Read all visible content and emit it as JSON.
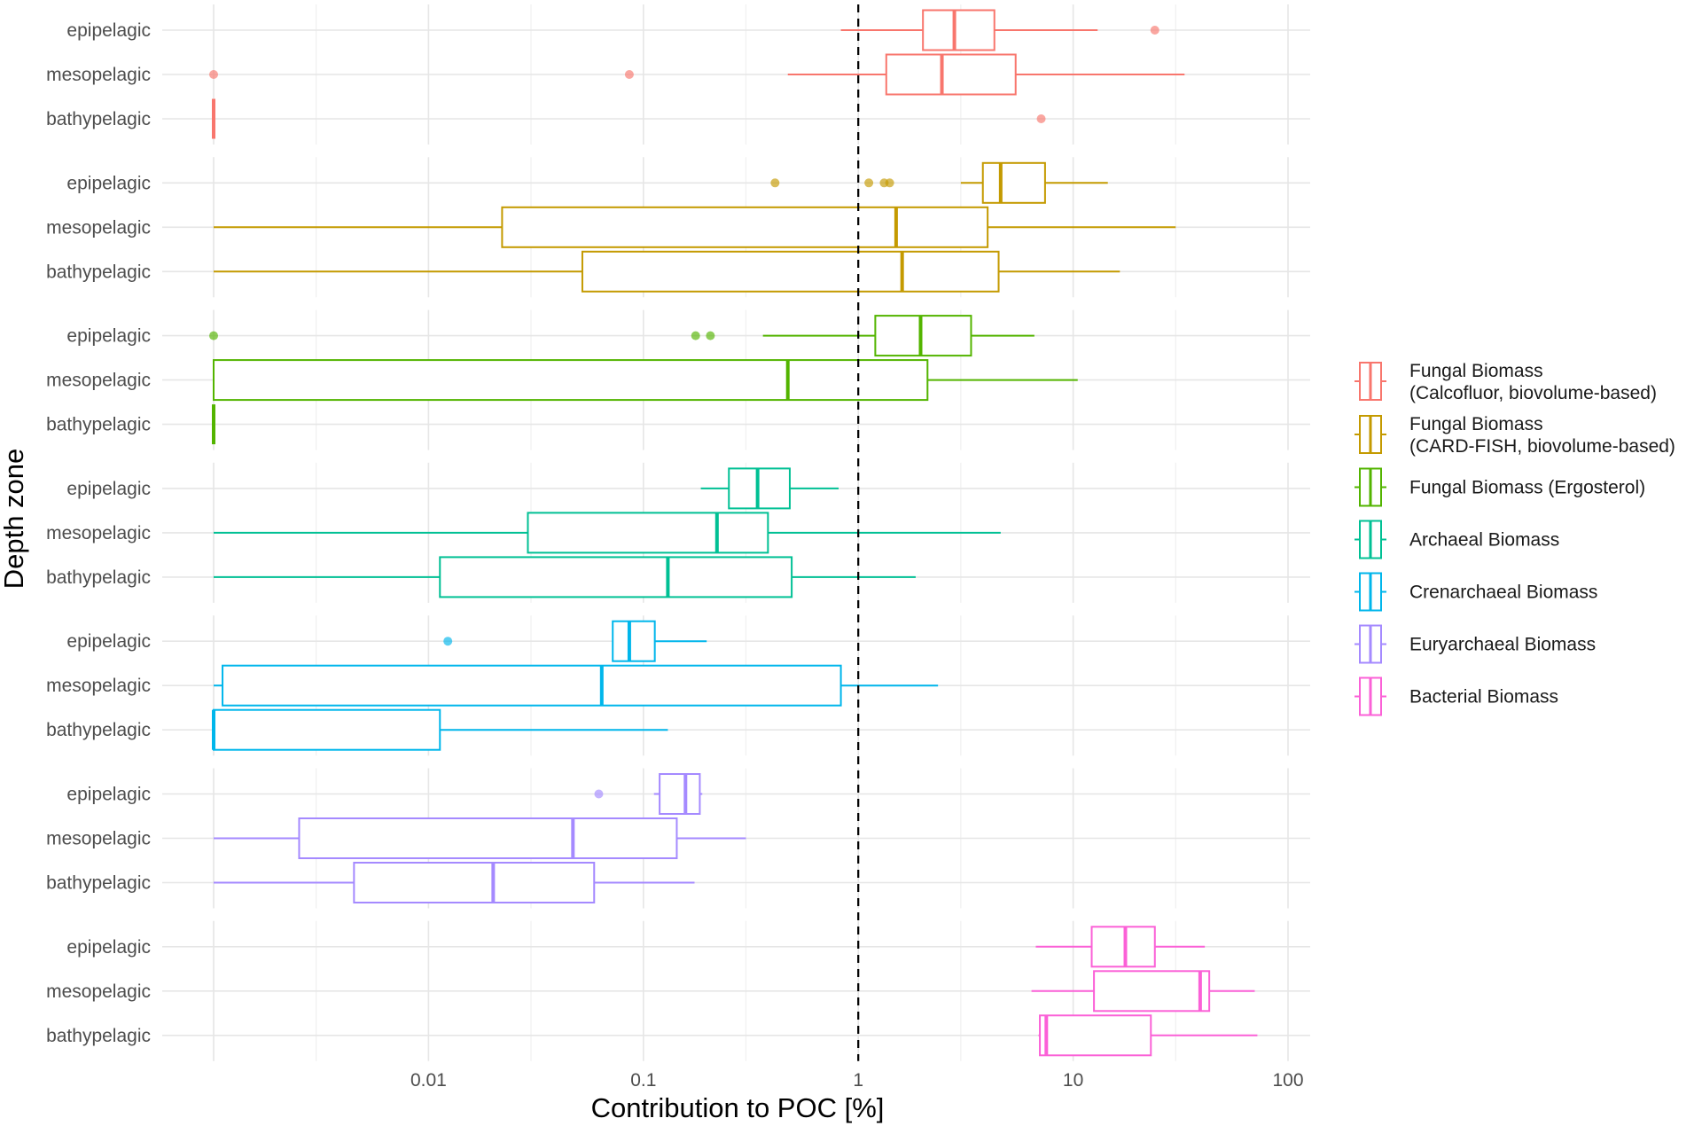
{
  "chart_data": {
    "type": "boxplot",
    "orientation": "horizontal",
    "x_scale": "log10",
    "xlabel": "Contribution to POC [%]",
    "ylabel": "Depth zone",
    "xlim": [
      0.00045,
      160
    ],
    "x_ticks": [
      {
        "value": 0.01,
        "label": "0.01"
      },
      {
        "value": 0.1,
        "label": "0.1"
      },
      {
        "value": 1,
        "label": "1"
      },
      {
        "value": 10,
        "label": "10"
      },
      {
        "value": 100,
        "label": "100"
      }
    ],
    "x_minor_ticks": [
      0.001,
      0.003,
      0.03,
      0.3,
      3,
      30
    ],
    "reference_line": {
      "x": 1,
      "style": "dashed",
      "color": "#000000"
    },
    "depth_zones": [
      "epipelagic",
      "mesopelagic",
      "bathypelagic"
    ],
    "groups": [
      {
        "name": "Fungal Biomass (Calcofluor, biovolume-based)",
        "legend_lines": [
          "Fungal Biomass",
          "(Calcofluor, biovolume-based)"
        ],
        "color": "#F8766D",
        "boxes": [
          {
            "zone": "epipelagic",
            "whisker_low": 0.83,
            "q1": 2.0,
            "median": 2.8,
            "q3": 4.3,
            "whisker_high": 13,
            "outliers": [
              24
            ]
          },
          {
            "zone": "mesopelagic",
            "whisker_low": 0.47,
            "q1": 1.35,
            "median": 2.45,
            "q3": 5.4,
            "whisker_high": 33,
            "outliers": [
              0.001,
              0.086
            ]
          },
          {
            "zone": "bathypelagic",
            "whisker_low": 0.001,
            "q1": 0.001,
            "median": 0.001,
            "q3": 0.001,
            "whisker_high": 0.001,
            "outliers": [
              7.1
            ]
          }
        ]
      },
      {
        "name": "Fungal Biomass (CARD-FISH, biovolume-based)",
        "legend_lines": [
          "Fungal Biomass",
          "(CARD-FISH, biovolume-based)"
        ],
        "color": "#C49A00",
        "boxes": [
          {
            "zone": "epipelagic",
            "whisker_low": 3.0,
            "q1": 3.8,
            "median": 4.6,
            "q3": 7.4,
            "whisker_high": 14.5,
            "outliers": [
              0.41,
              1.12,
              1.32,
              1.4
            ]
          },
          {
            "zone": "mesopelagic",
            "whisker_low": 0.001,
            "q1": 0.022,
            "median": 1.5,
            "q3": 4.0,
            "whisker_high": 30,
            "outliers": []
          },
          {
            "zone": "bathypelagic",
            "whisker_low": 0.001,
            "q1": 0.052,
            "median": 1.6,
            "q3": 4.5,
            "whisker_high": 16.5,
            "outliers": []
          }
        ]
      },
      {
        "name": "Fungal Biomass (Ergosterol)",
        "legend_lines": [
          "Fungal Biomass (Ergosterol)"
        ],
        "color": "#53B400",
        "boxes": [
          {
            "zone": "epipelagic",
            "whisker_low": 0.36,
            "q1": 1.2,
            "median": 1.95,
            "q3": 3.35,
            "whisker_high": 6.6,
            "outliers": [
              0.001,
              0.175,
              0.205
            ]
          },
          {
            "zone": "mesopelagic",
            "whisker_low": 0.001,
            "q1": 0.001,
            "median": 0.47,
            "q3": 2.1,
            "whisker_high": 10.5,
            "outliers": []
          },
          {
            "zone": "bathypelagic",
            "whisker_low": 0.001,
            "q1": 0.001,
            "median": 0.001,
            "q3": 0.001,
            "whisker_high": 0.001,
            "outliers": []
          }
        ]
      },
      {
        "name": "Archaeal Biomass",
        "legend_lines": [
          "Archaeal Biomass"
        ],
        "color": "#00C094",
        "boxes": [
          {
            "zone": "epipelagic",
            "whisker_low": 0.185,
            "q1": 0.25,
            "median": 0.34,
            "q3": 0.48,
            "whisker_high": 0.81,
            "outliers": []
          },
          {
            "zone": "mesopelagic",
            "whisker_low": 0.001,
            "q1": 0.029,
            "median": 0.22,
            "q3": 0.38,
            "whisker_high": 4.6,
            "outliers": []
          },
          {
            "zone": "bathypelagic",
            "whisker_low": 0.001,
            "q1": 0.0113,
            "median": 0.13,
            "q3": 0.49,
            "whisker_high": 1.85,
            "outliers": []
          }
        ]
      },
      {
        "name": "Crenarchaeal Biomass",
        "legend_lines": [
          "Crenarchaeal Biomass"
        ],
        "color": "#00B6EB",
        "boxes": [
          {
            "zone": "epipelagic",
            "whisker_low": 0.072,
            "q1": 0.072,
            "median": 0.086,
            "q3": 0.113,
            "whisker_high": 0.197,
            "outliers": [
              0.0123
            ]
          },
          {
            "zone": "mesopelagic",
            "whisker_low": 0.001,
            "q1": 0.0011,
            "median": 0.064,
            "q3": 0.83,
            "whisker_high": 2.35,
            "outliers": []
          },
          {
            "zone": "bathypelagic",
            "whisker_low": 0.001,
            "q1": 0.001,
            "median": 0.001,
            "q3": 0.0113,
            "whisker_high": 0.13,
            "outliers": []
          }
        ]
      },
      {
        "name": "Euryarchaeal Biomass",
        "legend_lines": [
          "Euryarchaeal Biomass"
        ],
        "color": "#A58AFF",
        "boxes": [
          {
            "zone": "epipelagic",
            "whisker_low": 0.112,
            "q1": 0.119,
            "median": 0.157,
            "q3": 0.183,
            "whisker_high": 0.188,
            "outliers": [
              0.062
            ]
          },
          {
            "zone": "mesopelagic",
            "whisker_low": 0.001,
            "q1": 0.0025,
            "median": 0.047,
            "q3": 0.143,
            "whisker_high": 0.3,
            "outliers": []
          },
          {
            "zone": "bathypelagic",
            "whisker_low": 0.001,
            "q1": 0.0045,
            "median": 0.02,
            "q3": 0.059,
            "whisker_high": 0.173,
            "outliers": []
          }
        ]
      },
      {
        "name": "Bacterial Biomass",
        "legend_lines": [
          "Bacterial Biomass"
        ],
        "color": "#FB61D7",
        "boxes": [
          {
            "zone": "epipelagic",
            "whisker_low": 6.7,
            "q1": 12.2,
            "median": 17.5,
            "q3": 24,
            "whisker_high": 41,
            "outliers": []
          },
          {
            "zone": "mesopelagic",
            "whisker_low": 6.4,
            "q1": 12.5,
            "median": 39,
            "q3": 43,
            "whisker_high": 70,
            "outliers": []
          },
          {
            "zone": "bathypelagic",
            "whisker_low": 6.9,
            "q1": 7.0,
            "median": 7.5,
            "q3": 23,
            "whisker_high": 72,
            "outliers": []
          }
        ]
      }
    ]
  }
}
